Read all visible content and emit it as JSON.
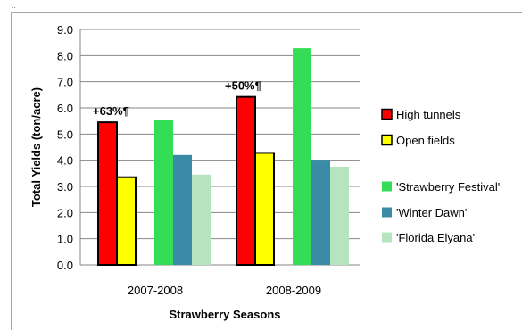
{
  "chart_data": {
    "type": "bar",
    "categories": [
      "2007-2008",
      "2008-2009"
    ],
    "xlabel": "Strawberry Seasons",
    "ylabel": "Total  Yields (ton/acre)",
    "ylim": [
      0,
      9
    ],
    "yticks": [
      "0.0",
      "1.0",
      "2.0",
      "3.0",
      "4.0",
      "5.0",
      "6.0",
      "7.0",
      "8.0",
      "9.0"
    ],
    "grid": true,
    "legend_position": "right",
    "groups": [
      {
        "series": [
          {
            "name": "High tunnels",
            "color": "#ff0000",
            "outline": "#000000",
            "values": [
              5.45,
              6.42
            ]
          },
          {
            "name": "Open fields",
            "color": "#ffff00",
            "outline": "#000000",
            "values": [
              3.35,
              4.28
            ]
          }
        ]
      },
      {
        "series": [
          {
            "name": "'Strawberry Festival'",
            "color": "#33dd55",
            "outline": "none",
            "values": [
              5.55,
              8.28
            ]
          },
          {
            "name": "'Winter Dawn'",
            "color": "#3b8ba6",
            "outline": "none",
            "values": [
              4.2,
              4.02
            ]
          },
          {
            "name": "'Florida Elyana'",
            "color": "#b6e4bd",
            "outline": "none",
            "values": [
              3.45,
              3.75
            ]
          }
        ]
      }
    ],
    "annotations": [
      "+63%¶",
      "+50%¶"
    ]
  },
  "corner_mark": ".."
}
